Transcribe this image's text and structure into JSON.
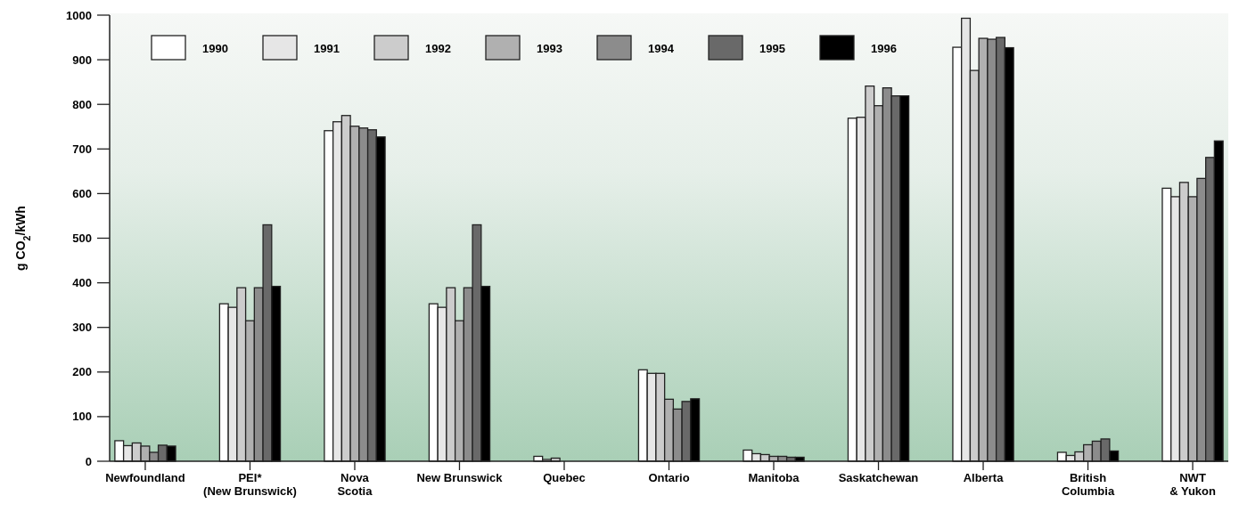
{
  "chart_data": {
    "type": "bar",
    "ylabel": "g CO$_{2}$/kWh",
    "categories": [
      "Newfoundland",
      "PEI*\n(New Brunswick)",
      "Nova\nScotia",
      "New Brunswick",
      "Quebec",
      "Ontario",
      "Manitoba",
      "Saskatchewan",
      "Alberta",
      "British\nColumbia",
      "NWT\n& Yukon"
    ],
    "series": [
      {
        "name": "1990",
        "color": "#ffffff",
        "values": [
          46,
          353,
          741,
          353,
          11,
          205,
          25,
          769,
          928,
          20,
          612
        ]
      },
      {
        "name": "1991",
        "color": "#e6e6e6",
        "values": [
          35,
          345,
          761,
          345,
          4,
          197,
          17,
          771,
          993,
          13,
          593
        ]
      },
      {
        "name": "1992",
        "color": "#cccccc",
        "values": [
          41,
          389,
          775,
          389,
          7,
          197,
          15,
          841,
          876,
          21,
          625
        ]
      },
      {
        "name": "1993",
        "color": "#b0b0b0",
        "values": [
          34,
          315,
          751,
          315,
          null,
          139,
          11,
          797,
          948,
          37,
          593
        ]
      },
      {
        "name": "1994",
        "color": "#8c8c8c",
        "values": [
          20,
          389,
          747,
          389,
          null,
          117,
          11,
          837,
          946,
          45,
          634
        ]
      },
      {
        "name": "1995",
        "color": "#696969",
        "values": [
          36,
          530,
          743,
          530,
          null,
          134,
          9,
          819,
          950,
          50,
          681
        ]
      },
      {
        "name": "1996",
        "color": "#000000",
        "values": [
          34,
          392,
          727,
          392,
          null,
          140,
          9,
          819,
          927,
          23,
          718
        ]
      }
    ],
    "ylim": [
      0,
      1000
    ],
    "yticks": [
      0,
      100,
      200,
      300,
      400,
      500,
      600,
      700,
      800,
      900,
      1000
    ],
    "legend": "top left"
  }
}
